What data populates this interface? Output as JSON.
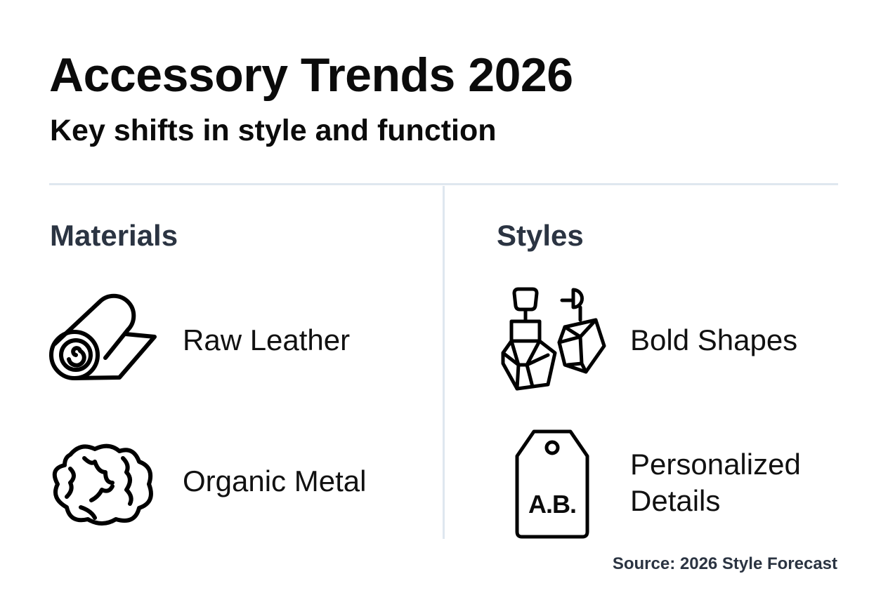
{
  "header": {
    "title": "Accessory Trends 2026",
    "subtitle": "Key shifts in style and function"
  },
  "sections": [
    {
      "heading": "Materials",
      "items": [
        {
          "label": "Raw Leather",
          "icon": "leather-roll-icon"
        },
        {
          "label": "Organic Metal",
          "icon": "organic-metal-nugget-icon"
        }
      ]
    },
    {
      "heading": "Styles",
      "items": [
        {
          "label": "Bold Shapes",
          "icon": "geometric-earrings-icon"
        },
        {
          "label": "Personalized Details",
          "icon": "monogram-tag-icon",
          "tag_text": "A.B."
        }
      ]
    }
  ],
  "footer": {
    "source": "Source: 2026 Style Forecast"
  },
  "colors": {
    "text": "#0b0b0b",
    "heading": "#2b3442",
    "divider": "#dfe7ef"
  }
}
